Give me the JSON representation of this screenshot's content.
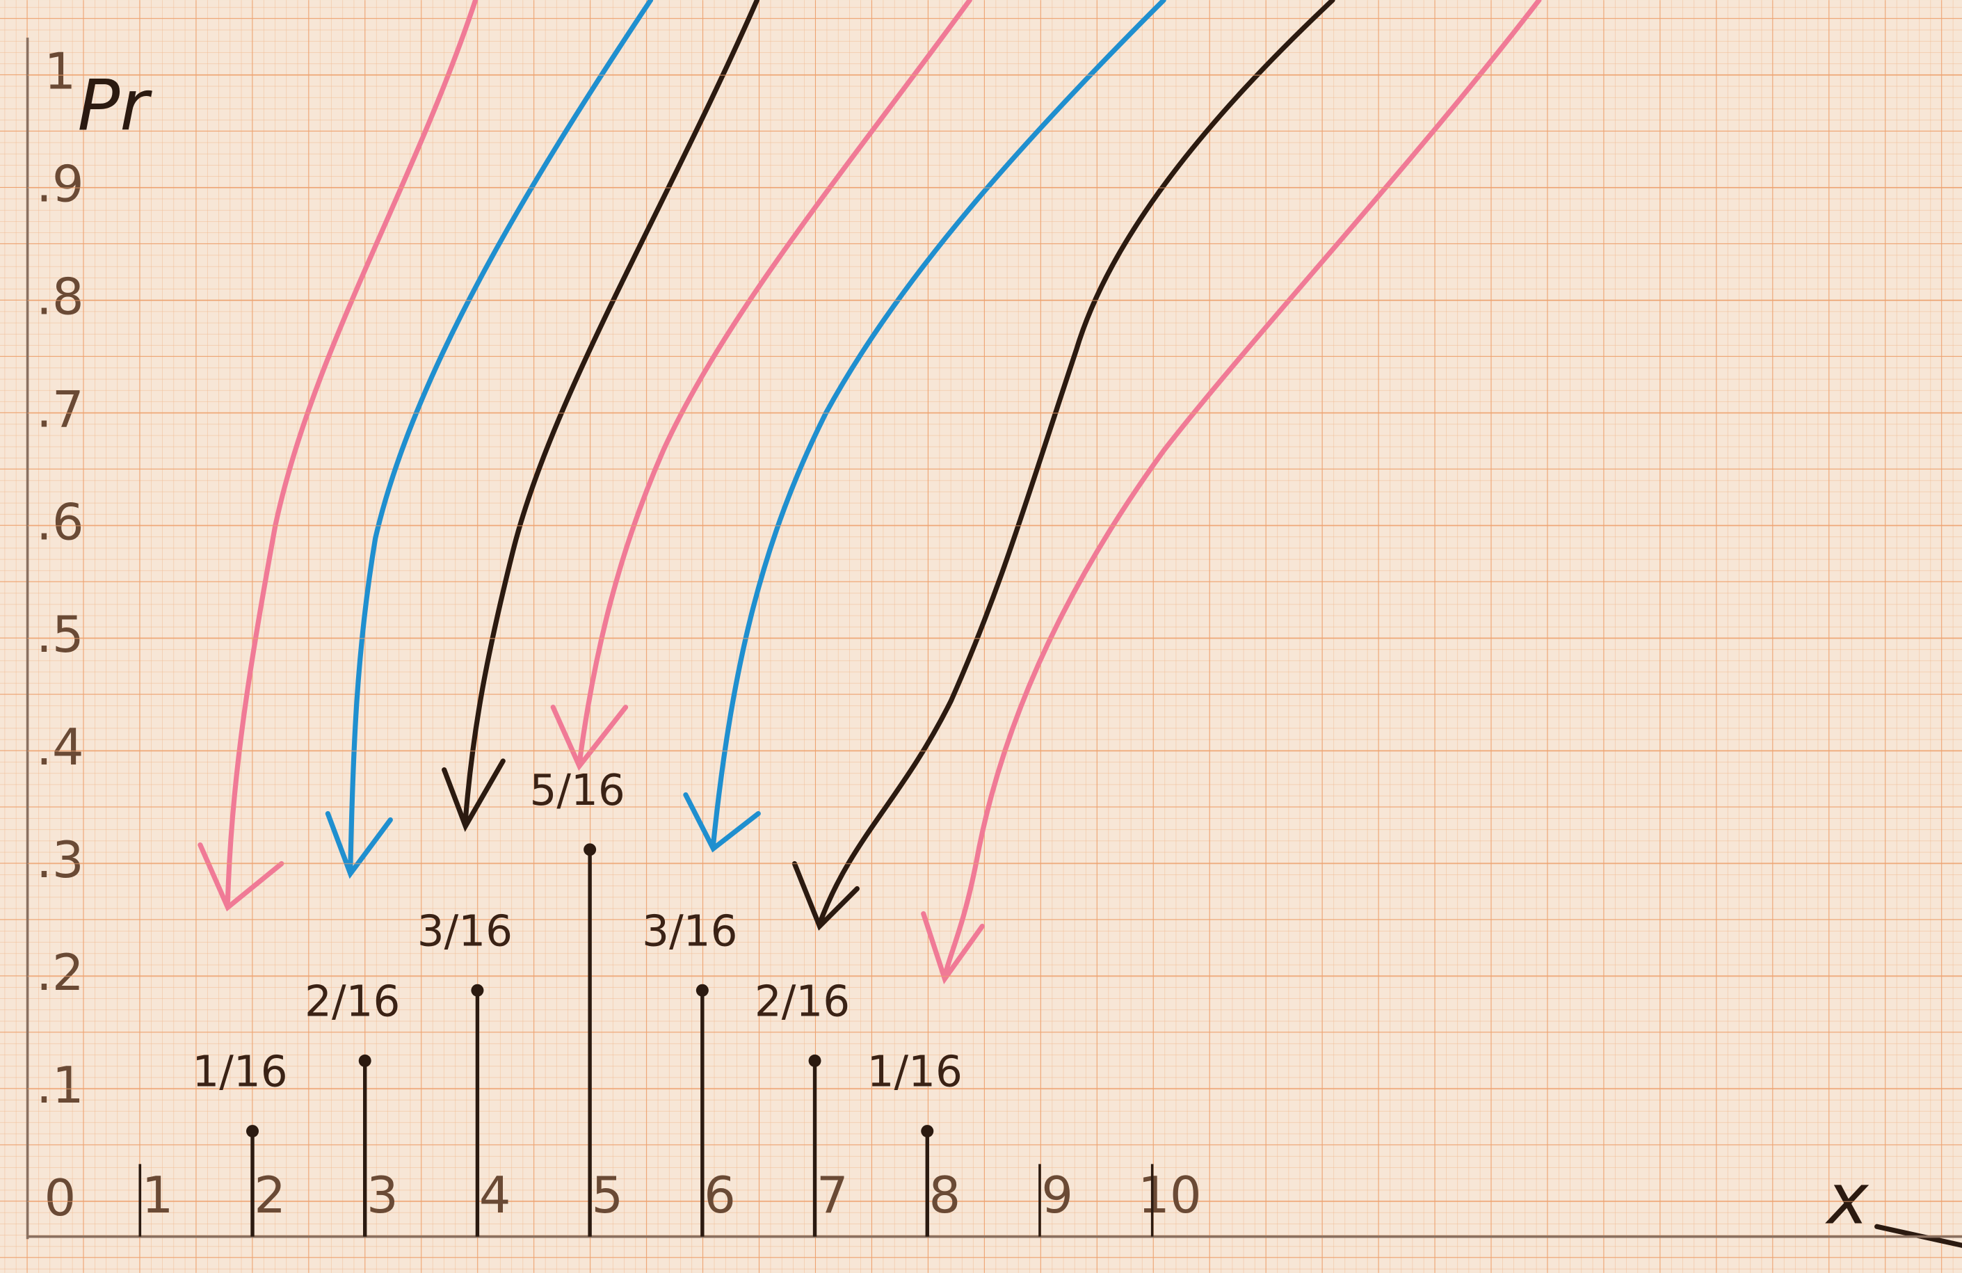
{
  "chart_data": {
    "type": "stem",
    "x": [
      2,
      3,
      4,
      5,
      6,
      7,
      8
    ],
    "values": [
      0.0625,
      0.125,
      0.1875,
      0.3125,
      0.1875,
      0.125,
      0.0625
    ],
    "value_labels": [
      "1/16",
      "2/16",
      "3/16",
      "5/16",
      "3/16",
      "2/16",
      "1/16"
    ],
    "color": "#2b1a10",
    "xlabel": "x",
    "ylabel": "Pr",
    "xlim": [
      0,
      17.2
    ],
    "ylim": [
      0,
      1.0667
    ],
    "xticks": [
      1,
      2,
      3,
      4,
      5,
      6,
      7,
      8,
      9,
      10
    ],
    "yticks": [
      0,
      {
        "value": 0.1,
        "label": ".1"
      },
      {
        "value": 0.2,
        "label": ".2"
      },
      {
        "value": 0.3,
        "label": ".3"
      },
      {
        "value": 0.4,
        "label": ".4"
      },
      {
        "value": 0.5,
        "label": ".5"
      },
      {
        "value": 0.6,
        "label": ".6"
      },
      {
        "value": 0.7,
        "label": ".7"
      },
      {
        "value": 0.8,
        "label": ".8"
      },
      {
        "value": 0.9,
        "label": ".9"
      },
      1
    ],
    "grid": true
  }
}
